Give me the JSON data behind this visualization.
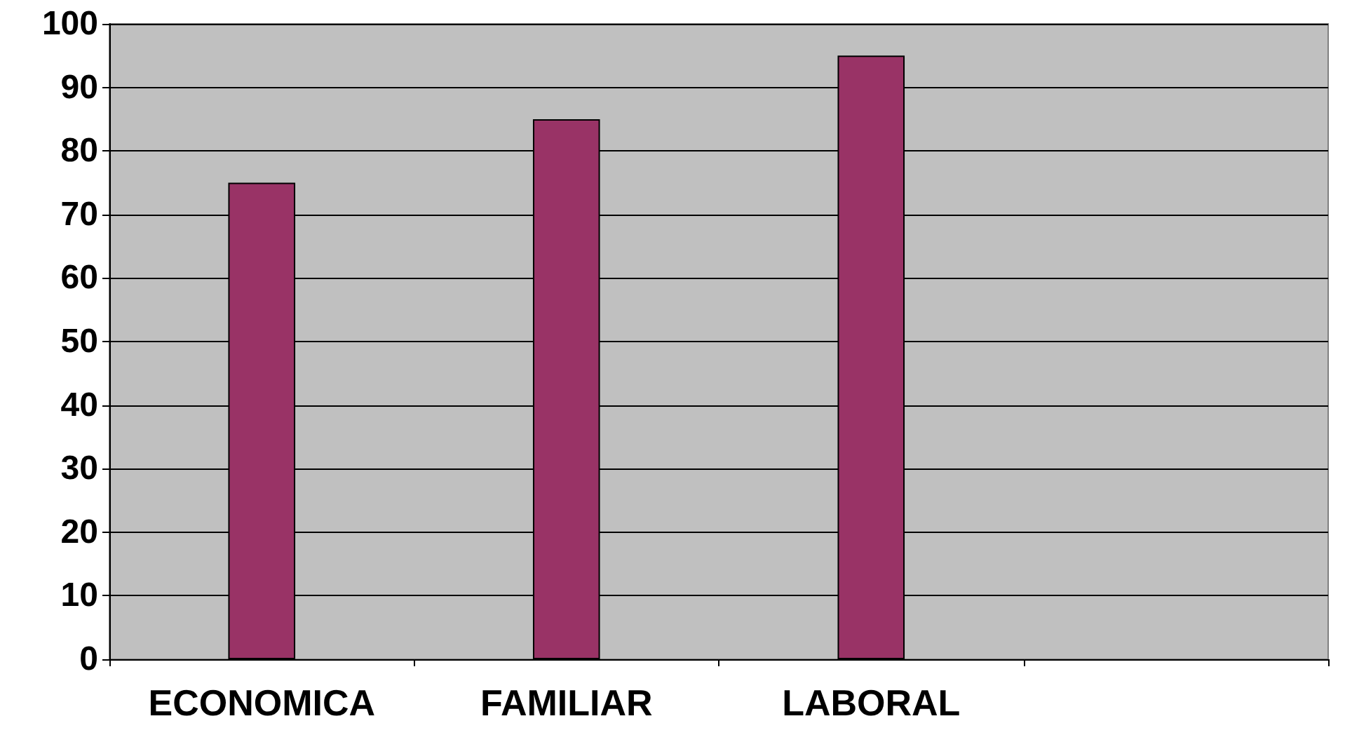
{
  "chart_data": {
    "type": "bar",
    "categories": [
      "ECONOMICA",
      "FAMILIAR",
      "LABORAL",
      null
    ],
    "series": [
      {
        "color": "#993366",
        "values": [
          75,
          85,
          95,
          null
        ]
      }
    ],
    "ylim": [
      0,
      100
    ],
    "yticks": [
      0,
      10,
      20,
      30,
      40,
      50,
      60,
      70,
      80,
      90,
      100
    ],
    "grid": "y"
  }
}
